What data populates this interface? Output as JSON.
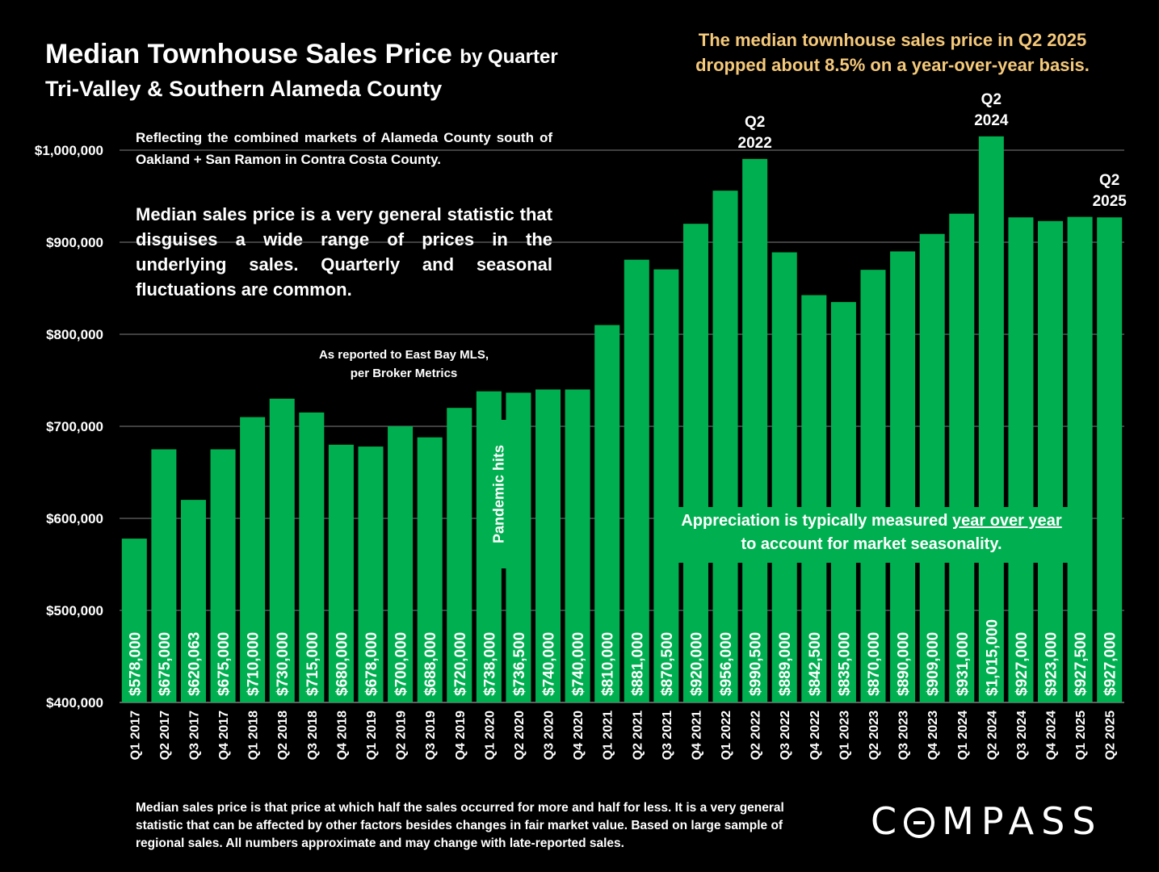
{
  "header": {
    "title": "Median Townhouse Sales Price",
    "title_suffix": "by Quarter",
    "subtitle": "Tri-Valley & Southern Alameda County",
    "headline_line1": "The median townhouse sales price in Q2 2025",
    "headline_line2": "dropped about 8.5% on a year-over-year basis."
  },
  "notes": {
    "note1": "Reflecting the combined markets of Alameda County south of Oakland + San Ramon in Contra Costa County.",
    "note2": "Median sales price is a very general statistic that disguises a wide range of prices in the underlying sales. Quarterly and seasonal fluctuations are common.",
    "source_line1": "As reported to East Bay MLS,",
    "source_line2": "per Broker Metrics",
    "pandemic": "Pandemic hits",
    "appreciation_pre": "Appreciation is typically measured ",
    "appreciation_underline": "year over year",
    "appreciation_line2": "to account for market seasonality.",
    "footnote": "Median sales price is that price at which half the sales occurred for more and half for less. It is a very general statistic that can be affected by other factors besides changes in fair market value. Based on large sample of regional sales. All numbers approximate and may change with late-reported sales."
  },
  "logo": {
    "text": "C",
    "text_rest": "MPASS"
  },
  "colors": {
    "bar": "#00b050",
    "background": "#000000",
    "headline": "#f5c97a",
    "grid": "#7f7f7f"
  },
  "chart_data": {
    "type": "bar",
    "ylim": [
      400000,
      1050000
    ],
    "yticks": [
      400000,
      500000,
      600000,
      700000,
      800000,
      900000,
      1000000
    ],
    "ytick_labels": [
      "$400,000",
      "$500,000",
      "$600,000",
      "$700,000",
      "$800,000",
      "$900,000",
      "$1,000,000"
    ],
    "categories": [
      "Q1 2017",
      "Q2 2017",
      "Q3 2017",
      "Q4 2017",
      "Q1 2018",
      "Q2 2018",
      "Q3 2018",
      "Q4 2018",
      "Q1 2019",
      "Q2 2019",
      "Q3 2019",
      "Q4 2019",
      "Q1 2020",
      "Q2 2020",
      "Q3 2020",
      "Q4 2020",
      "Q1 2021",
      "Q2 2021",
      "Q3 2021",
      "Q4 2021",
      "Q1 2022",
      "Q2 2022",
      "Q3 2022",
      "Q4 2022",
      "Q1 2023",
      "Q2 2023",
      "Q3 2023",
      "Q4 2023",
      "Q1 2024",
      "Q2 2024",
      "Q3 2024",
      "Q4 2024",
      "Q1 2025",
      "Q2 2025"
    ],
    "values": [
      578000,
      675000,
      620063,
      675000,
      710000,
      730000,
      715000,
      680000,
      678000,
      700000,
      688000,
      720000,
      738000,
      736500,
      740000,
      740000,
      810000,
      881000,
      870500,
      920000,
      956000,
      990500,
      889000,
      842500,
      835000,
      870000,
      890000,
      909000,
      931000,
      1015000,
      927000,
      923000,
      927500,
      927000
    ],
    "data_labels": [
      "$578,000",
      "$675,000",
      "$620,063",
      "$675,000",
      "$710,000",
      "$730,000",
      "$715,000",
      "$680,000",
      "$678,000",
      "$700,000",
      "$688,000",
      "$720,000",
      "$738,000",
      "$736,500",
      "$740,000",
      "$740,000",
      "$810,000",
      "$881,000",
      "$870,500",
      "$920,000",
      "$956,000",
      "$990,500",
      "$889,000",
      "$842,500",
      "$835,000",
      "$870,000",
      "$890,000",
      "$909,000",
      "$931,000",
      "$1,015,000",
      "$927,000",
      "$923,000",
      "$927,500",
      "$927,000"
    ],
    "annotations": [
      {
        "index": 21,
        "line1": "Q2",
        "line2": "2022"
      },
      {
        "index": 29,
        "line1": "Q2",
        "line2": "2024"
      },
      {
        "index": 33,
        "line1": "Q2",
        "line2": "2025"
      }
    ]
  }
}
